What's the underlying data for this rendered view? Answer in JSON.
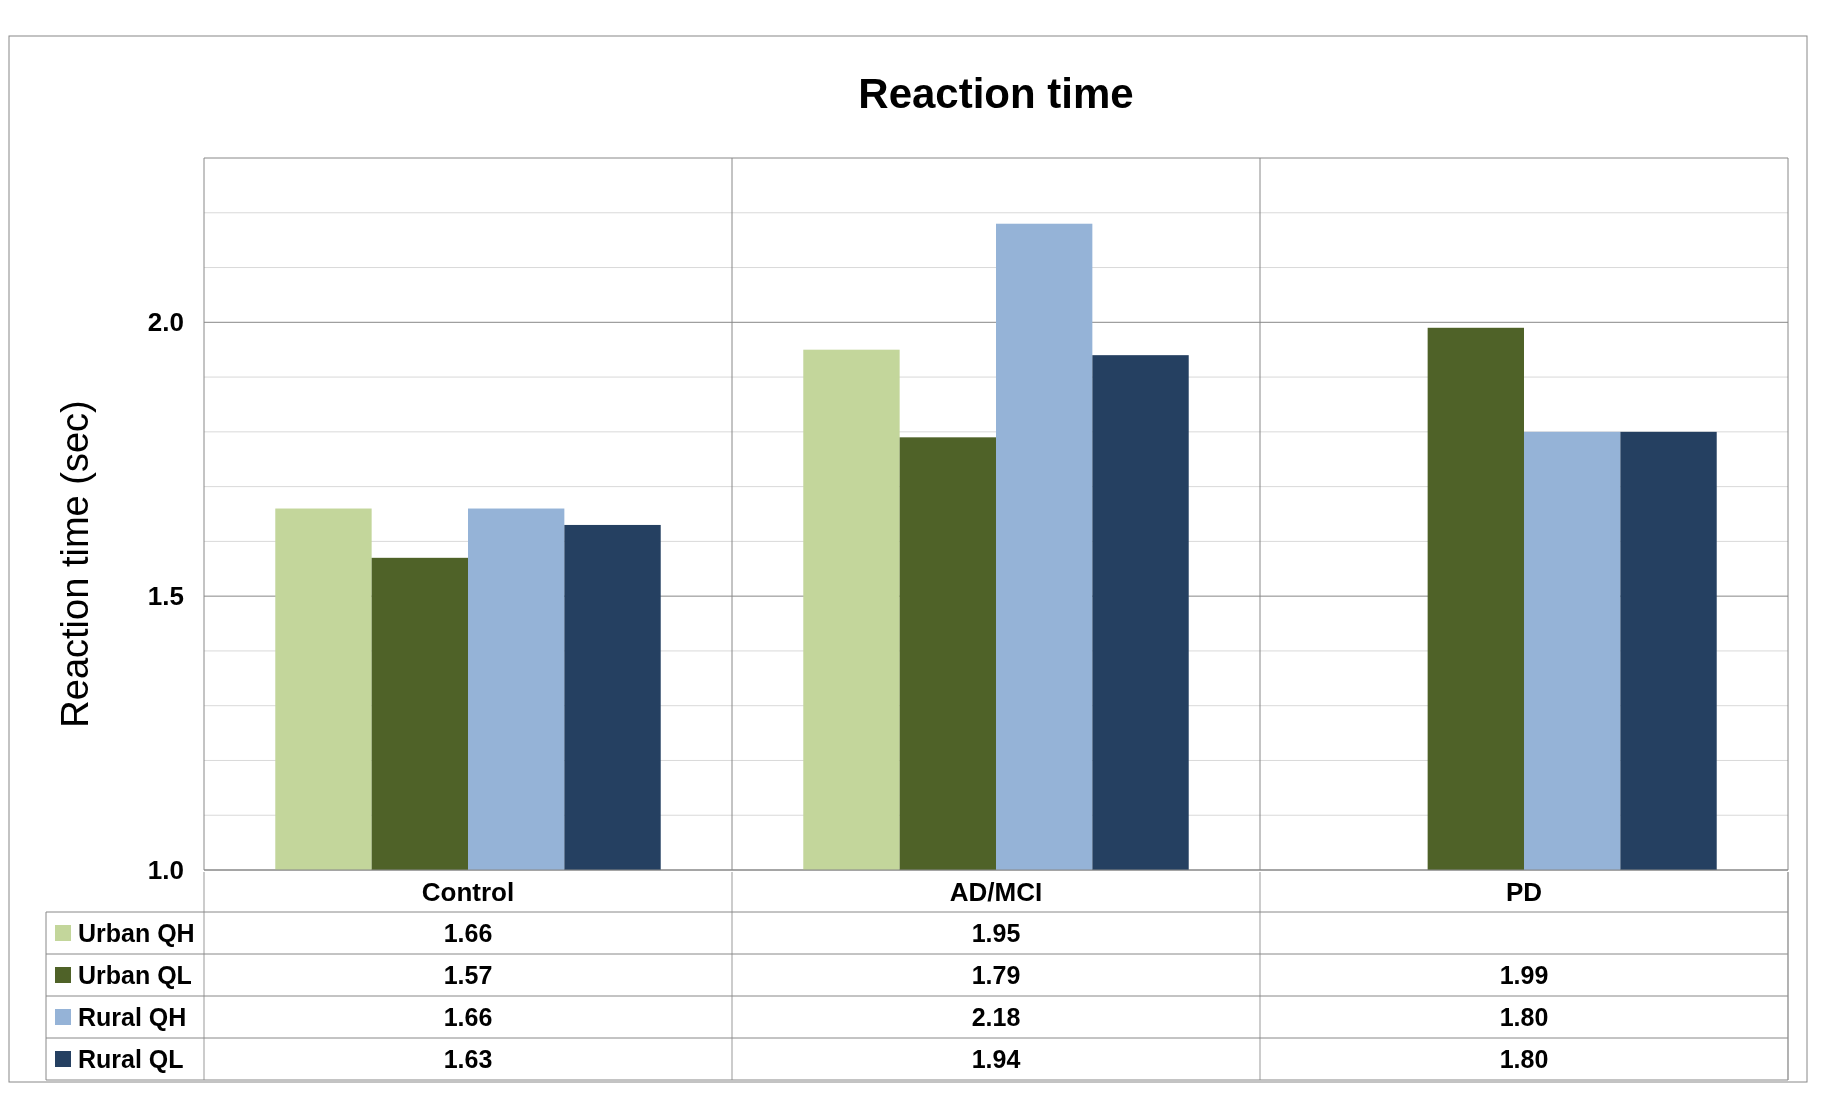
{
  "chart_data": {
    "type": "bar",
    "title": "Reaction time",
    "ylabel": "Reaction time (sec)",
    "categories": [
      "Control",
      "AD/MCI",
      "PD"
    ],
    "series": [
      {
        "name": "Urban QH",
        "color": "#c3d69b",
        "values": [
          1.66,
          1.95,
          null
        ],
        "value_labels": [
          "1.66",
          "1.95",
          null
        ]
      },
      {
        "name": "Urban QL",
        "color": "#4f6228",
        "values": [
          1.57,
          1.79,
          1.99
        ],
        "value_labels": [
          "1.57",
          "1.79",
          "1.99"
        ]
      },
      {
        "name": "Rural QH",
        "color": "#95b3d7",
        "values": [
          1.66,
          2.18,
          1.8
        ],
        "value_labels": [
          "1.66",
          "2.18",
          "1.80"
        ]
      },
      {
        "name": "Rural QL",
        "color": "#254061",
        "values": [
          1.63,
          1.94,
          1.8
        ],
        "value_labels": [
          "1.63",
          "1.94",
          "1.80"
        ]
      }
    ],
    "ylim": [
      1.0,
      2.3
    ],
    "yticks": [
      {
        "value": 1.0,
        "label": "1.0"
      },
      {
        "value": 1.1,
        "label": null
      },
      {
        "value": 1.2,
        "label": null
      },
      {
        "value": 1.3,
        "label": null
      },
      {
        "value": 1.4,
        "label": null
      },
      {
        "value": 1.5,
        "label": "1.5"
      },
      {
        "value": 1.6,
        "label": null
      },
      {
        "value": 1.7,
        "label": null
      },
      {
        "value": 1.8,
        "label": null
      },
      {
        "value": 1.9,
        "label": null
      },
      {
        "value": 2.0,
        "label": "2.0"
      },
      {
        "value": 2.1,
        "label": null
      },
      {
        "value": 2.2,
        "label": null
      }
    ],
    "grid": "y",
    "legend": "bottom"
  }
}
